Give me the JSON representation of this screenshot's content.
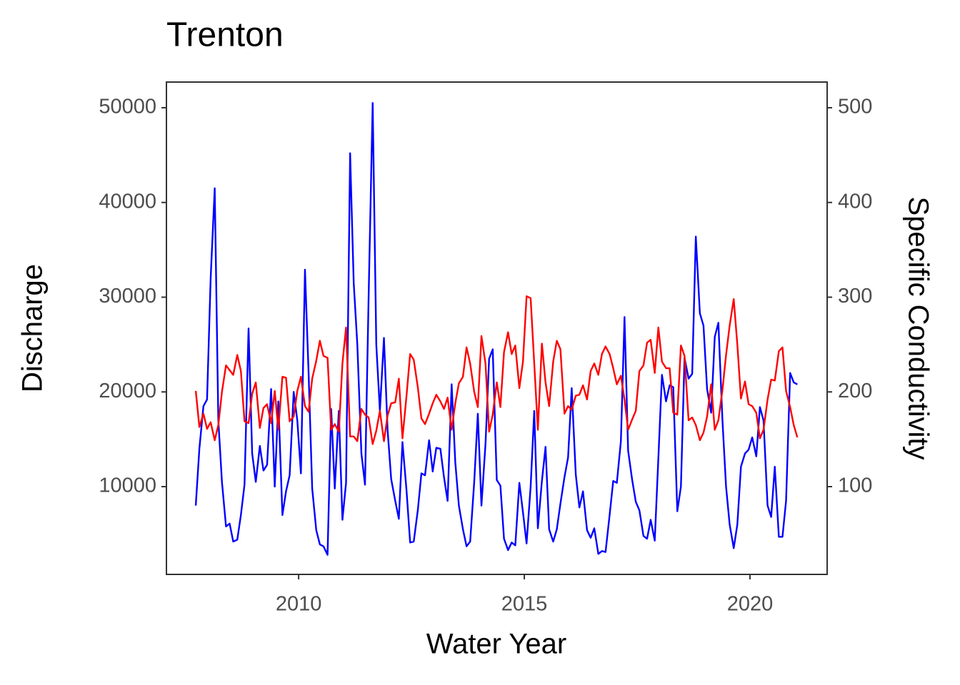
{
  "chart_data": {
    "type": "line",
    "title": "Trenton",
    "x_label": "Water Year",
    "y_label": "Discharge",
    "y2_label": "Specific Conductivity",
    "xlim": [
      2007.07,
      2021.71
    ],
    "xticks": [
      2010,
      2015,
      2020
    ],
    "ylim": [
      734,
      52712
    ],
    "yticks": [
      10000,
      20000,
      30000,
      40000,
      50000
    ],
    "y2lim": [
      7.34,
      527.12
    ],
    "y2ticks": [
      100,
      200,
      300,
      400,
      500
    ],
    "grid": false,
    "x": [
      2007.72,
      2007.8,
      2007.89,
      2007.97,
      2008.05,
      2008.14,
      2008.22,
      2008.3,
      2008.39,
      2008.47,
      2008.55,
      2008.64,
      2008.72,
      2008.8,
      2008.89,
      2008.97,
      2009.05,
      2009.14,
      2009.22,
      2009.3,
      2009.39,
      2009.47,
      2009.55,
      2009.64,
      2009.72,
      2009.8,
      2009.89,
      2009.97,
      2010.05,
      2010.14,
      2010.22,
      2010.3,
      2010.39,
      2010.47,
      2010.55,
      2010.64,
      2010.72,
      2010.8,
      2010.89,
      2010.97,
      2011.05,
      2011.14,
      2011.22,
      2011.3,
      2011.39,
      2011.47,
      2011.55,
      2011.64,
      2011.72,
      2011.8,
      2011.89,
      2011.97,
      2012.05,
      2012.14,
      2012.22,
      2012.3,
      2012.39,
      2012.47,
      2012.55,
      2012.64,
      2012.72,
      2012.8,
      2012.89,
      2012.97,
      2013.05,
      2013.14,
      2013.22,
      2013.3,
      2013.39,
      2013.47,
      2013.55,
      2013.64,
      2013.72,
      2013.8,
      2013.89,
      2013.97,
      2014.05,
      2014.14,
      2014.22,
      2014.3,
      2014.39,
      2014.47,
      2014.55,
      2014.64,
      2014.72,
      2014.8,
      2014.89,
      2014.97,
      2015.05,
      2015.14,
      2015.22,
      2015.3,
      2015.39,
      2015.47,
      2015.55,
      2015.64,
      2015.72,
      2015.8,
      2015.89,
      2015.97,
      2016.05,
      2016.14,
      2016.22,
      2016.3,
      2016.39,
      2016.47,
      2016.55,
      2016.64,
      2016.72,
      2016.8,
      2016.89,
      2016.97,
      2017.05,
      2017.14,
      2017.22,
      2017.3,
      2017.39,
      2017.47,
      2017.55,
      2017.64,
      2017.72,
      2017.8,
      2017.89,
      2017.97,
      2018.05,
      2018.14,
      2018.22,
      2018.3,
      2018.39,
      2018.47,
      2018.55,
      2018.64,
      2018.72,
      2018.8,
      2018.89,
      2018.97,
      2019.05,
      2019.14,
      2019.22,
      2019.3,
      2019.39,
      2019.47,
      2019.55,
      2019.64,
      2019.72,
      2019.8,
      2019.89,
      2019.97,
      2020.05,
      2020.14,
      2020.22,
      2020.3,
      2020.39,
      2020.47,
      2020.55,
      2020.64,
      2020.72,
      2020.8,
      2020.89,
      2020.97,
      2021.05
    ],
    "series": [
      {
        "color": "#0000ff",
        "values": [
          8000,
          14000,
          18500,
          19200,
          32000,
          41500,
          17000,
          10500,
          5800,
          6100,
          4200,
          4400,
          7000,
          10200,
          26700,
          13500,
          10500,
          14300,
          11700,
          12300,
          20300,
          10000,
          19000,
          7000,
          9500,
          11200,
          20000,
          17000,
          11400,
          32900,
          22000,
          9800,
          5400,
          3900,
          3700,
          2800,
          18200,
          9800,
          18000,
          6500,
          10400,
          45200,
          31500,
          25000,
          13500,
          10200,
          30000,
          50500,
          25000,
          18000,
          25700,
          16000,
          10800,
          8500,
          6600,
          14700,
          9600,
          4100,
          4200,
          7500,
          11400,
          11200,
          14900,
          11600,
          14100,
          14000,
          11000,
          8500,
          20800,
          12600,
          8000,
          5500,
          3700,
          4200,
          10500,
          17700,
          8000,
          14500,
          23500,
          24500,
          10700,
          10100,
          4500,
          3300,
          4100,
          3800,
          10400,
          7300,
          4000,
          10000,
          18000,
          5600,
          10600,
          14200,
          5500,
          4200,
          5500,
          8200,
          11000,
          13100,
          20400,
          11300,
          7800,
          9500,
          5400,
          4600,
          5600,
          2900,
          3200,
          3100,
          7000,
          10600,
          10400,
          14800,
          27900,
          13800,
          10700,
          8400,
          7500,
          4800,
          4500,
          6500,
          4300,
          13000,
          21800,
          19000,
          20700,
          20500,
          7400,
          10000,
          23600,
          21400,
          21900,
          36400,
          28300,
          27000,
          20300,
          17800,
          25800,
          27300,
          17000,
          10000,
          6000,
          3500,
          6000,
          12100,
          13500,
          13900,
          15200,
          13200,
          18400,
          17000,
          8000,
          6800,
          12100,
          4700,
          4700,
          8500,
          22000,
          21000,
          20800
        ]
      },
      {
        "color": "#ff0000",
        "axis": "y2",
        "values": [
          201,
          163,
          177,
          161,
          168,
          149,
          165,
          200,
          228,
          223,
          218,
          239,
          222,
          169,
          167,
          198,
          210,
          162,
          183,
          187,
          167,
          201,
          160,
          216,
          215,
          169,
          174,
          201,
          216,
          185,
          179,
          214,
          233,
          254,
          238,
          236,
          160,
          166,
          158,
          230,
          268,
          153,
          153,
          148,
          182,
          176,
          173,
          145,
          159,
          180,
          148,
          175,
          188,
          189,
          214,
          151,
          196,
          240,
          234,
          205,
          172,
          166,
          177,
          188,
          197,
          190,
          182,
          194,
          160,
          188,
          209,
          216,
          247,
          230,
          200,
          184,
          259,
          230,
          158,
          176,
          210,
          184,
          242,
          263,
          240,
          249,
          204,
          232,
          301,
          299,
          230,
          160,
          251,
          210,
          185,
          232,
          254,
          245,
          177,
          185,
          181,
          196,
          197,
          207,
          192,
          222,
          230,
          218,
          240,
          248,
          240,
          225,
          208,
          217,
          192,
          160,
          171,
          180,
          222,
          228,
          252,
          255,
          220,
          268,
          232,
          225,
          225,
          178,
          176,
          249,
          238,
          170,
          173,
          165,
          149,
          157,
          174,
          208,
          160,
          170,
          202,
          239,
          270,
          298,
          250,
          193,
          211,
          187,
          185,
          178,
          151,
          160,
          192,
          213,
          212,
          243,
          247,
          201,
          184,
          165,
          152
        ]
      }
    ]
  }
}
